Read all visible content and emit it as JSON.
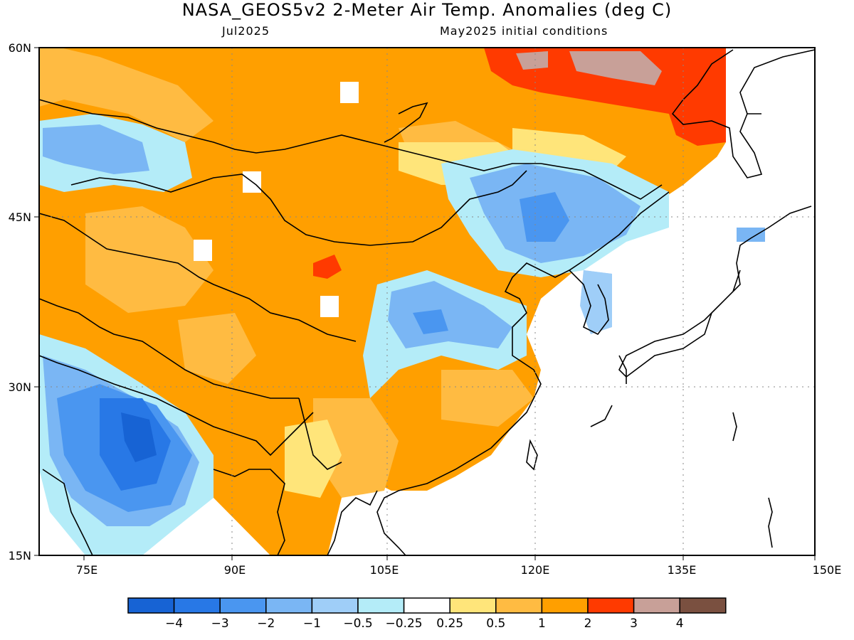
{
  "header": {
    "title": "NASA_GEOS5v2 2-Meter Air Temp. Anomalies (deg C)",
    "month": "Jul2025",
    "init": "May2025 initial conditions"
  },
  "axes": {
    "lat_labels": [
      "60N",
      "45N",
      "30N",
      "15N"
    ],
    "lon_labels": [
      "75E",
      "90E",
      "105E",
      "120E",
      "135E",
      "150E"
    ]
  },
  "colorbar": {
    "colors": [
      "#1763d4",
      "#2878e6",
      "#4a96f0",
      "#7ab6f4",
      "#9fcef8",
      "#b4ecf8",
      "#ffffff",
      "#ffe57a",
      "#ffbb42",
      "#ff9f00",
      "#ff3a00",
      "#c8a098",
      "#7a5040"
    ],
    "labels": [
      "−4",
      "−3",
      "−2",
      "−1",
      "−0.5",
      "−0.25",
      "0.25",
      "0.5",
      "1",
      "2",
      "3",
      "4"
    ]
  }
}
